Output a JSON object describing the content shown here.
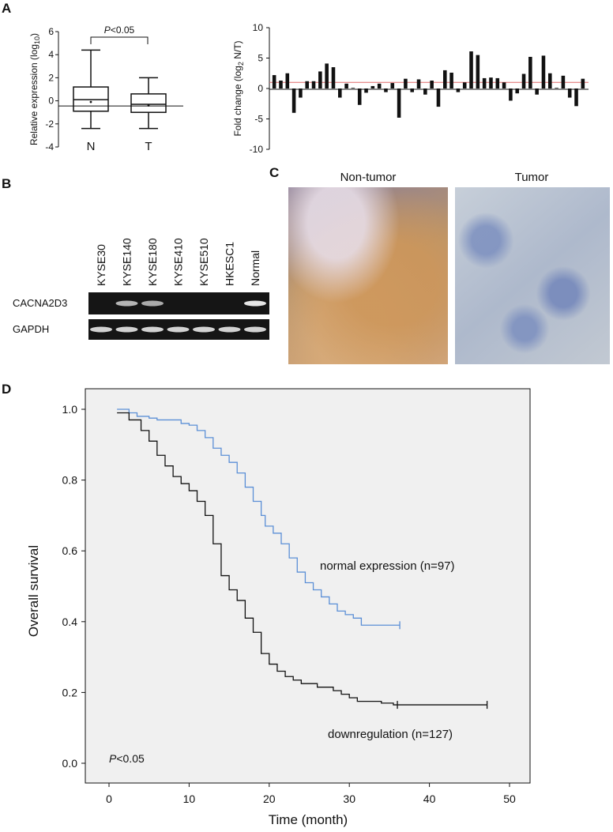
{
  "panels": {
    "a": "A",
    "b": "B",
    "c": "C",
    "d": "D"
  },
  "chart_data": [
    {
      "type": "boxplot",
      "panel": "A",
      "ylabel": "Relative expression (log10)",
      "ylim": [
        -4,
        6
      ],
      "yticks": [
        "6",
        "4",
        "2",
        "0",
        "-2",
        "-4"
      ],
      "categories": [
        "N",
        "T"
      ],
      "boxes": [
        {
          "label": "N",
          "min": -2.4,
          "q1": -0.9,
          "median": 0.1,
          "q3": 1.2,
          "max": 4.4,
          "mean": -0.1
        },
        {
          "label": "T",
          "min": -2.4,
          "q1": -1.0,
          "median": -0.3,
          "q3": 0.6,
          "max": 2.0,
          "mean": -0.4
        }
      ],
      "reference_line": -0.45,
      "annotation": "P<0.05"
    },
    {
      "type": "bar",
      "panel": "A",
      "ylabel": "Fold change (log2 N/T)",
      "ylim": [
        -10,
        10
      ],
      "yticks": [
        "10",
        "5",
        "0",
        "-5",
        "-10"
      ],
      "threshold_line": 1,
      "values": [
        2.2,
        1.3,
        2.5,
        -4.0,
        -1.5,
        1.2,
        1.2,
        2.8,
        4.1,
        3.5,
        -1.5,
        0.8,
        0.1,
        -2.7,
        -0.7,
        0.4,
        0.8,
        -0.6,
        0.9,
        -4.8,
        1.6,
        -0.6,
        1.5,
        -1.0,
        1.3,
        -3.0,
        3.0,
        2.6,
        -0.6,
        1.0,
        6.1,
        5.5,
        1.7,
        1.8,
        1.7,
        1.0,
        -2.0,
        -0.8,
        2.4,
        5.2,
        -1.0,
        5.4,
        2.5,
        0.1,
        2.1,
        -1.5,
        -2.9,
        1.6
      ]
    },
    {
      "type": "kaplan-meier",
      "panel": "D",
      "xlabel": "Time (month)",
      "ylabel": "Overall survival",
      "xlim": [
        0,
        50
      ],
      "ylim": [
        0,
        1
      ],
      "xticks": [
        "0",
        "10",
        "20",
        "30",
        "40",
        "50"
      ],
      "yticks": [
        "0.0",
        "0.2",
        "0.4",
        "0.6",
        "0.8",
        "1.0"
      ],
      "series": [
        {
          "name": "normal expression (n=97)",
          "color": "#5b8fd6",
          "steps": [
            [
              1,
              1.0
            ],
            [
              2.5,
              0.99
            ],
            [
              3.5,
              0.98
            ],
            [
              5,
              0.975
            ],
            [
              6,
              0.97
            ],
            [
              9,
              0.96
            ],
            [
              10,
              0.955
            ],
            [
              11,
              0.94
            ],
            [
              12,
              0.92
            ],
            [
              13,
              0.89
            ],
            [
              14,
              0.87
            ],
            [
              15,
              0.85
            ],
            [
              16,
              0.82
            ],
            [
              17,
              0.78
            ],
            [
              18,
              0.74
            ],
            [
              19,
              0.7
            ],
            [
              19.5,
              0.67
            ],
            [
              20.5,
              0.65
            ],
            [
              21.5,
              0.62
            ],
            [
              22.5,
              0.58
            ],
            [
              23.5,
              0.54
            ],
            [
              24.5,
              0.51
            ],
            [
              25.5,
              0.49
            ],
            [
              26.5,
              0.47
            ],
            [
              27.5,
              0.45
            ],
            [
              28.5,
              0.43
            ],
            [
              29.5,
              0.42
            ],
            [
              30.5,
              0.41
            ],
            [
              31.5,
              0.39
            ],
            [
              36.3,
              0.39
            ]
          ],
          "censor_marks": [
            [
              36.3,
              0.39
            ]
          ]
        },
        {
          "name": "downregulation (n=127)",
          "color": "#111111",
          "steps": [
            [
              1,
              0.99
            ],
            [
              2.5,
              0.97
            ],
            [
              4,
              0.94
            ],
            [
              5,
              0.91
            ],
            [
              6,
              0.87
            ],
            [
              7,
              0.84
            ],
            [
              8,
              0.81
            ],
            [
              9,
              0.79
            ],
            [
              10,
              0.77
            ],
            [
              11,
              0.74
            ],
            [
              12,
              0.7
            ],
            [
              13,
              0.62
            ],
            [
              14,
              0.53
            ],
            [
              15,
              0.49
            ],
            [
              16,
              0.46
            ],
            [
              17,
              0.41
            ],
            [
              18,
              0.37
            ],
            [
              19,
              0.31
            ],
            [
              20,
              0.28
            ],
            [
              21,
              0.26
            ],
            [
              22,
              0.245
            ],
            [
              23,
              0.235
            ],
            [
              24,
              0.225
            ],
            [
              26,
              0.215
            ],
            [
              28,
              0.205
            ],
            [
              29,
              0.195
            ],
            [
              30,
              0.185
            ],
            [
              31,
              0.175
            ],
            [
              34,
              0.17
            ],
            [
              35.5,
              0.165
            ],
            [
              47.2,
              0.165
            ]
          ],
          "censor_marks": [
            [
              36,
              0.165
            ],
            [
              47.2,
              0.165
            ]
          ]
        }
      ],
      "annotation": "P<0.05"
    }
  ],
  "blot": {
    "lanes": [
      "KYSE30",
      "KYSE140",
      "KYSE180",
      "KYSE410",
      "KYSE510",
      "HKESC1",
      "Normal"
    ],
    "rows": [
      {
        "label": "CACNA2D3",
        "intensity": [
          0.05,
          0.7,
          0.65,
          0.05,
          0.05,
          0.05,
          0.95
        ]
      },
      {
        "label": "GAPDH",
        "intensity": [
          0.85,
          0.85,
          0.85,
          0.85,
          0.85,
          0.85,
          0.85
        ]
      }
    ]
  },
  "ihc": {
    "left_title": "Non-tumor",
    "right_title": "Tumor"
  }
}
